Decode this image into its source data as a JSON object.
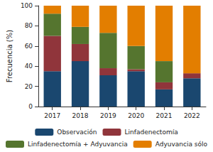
{
  "chart_data": {
    "type": "bar",
    "stacked": true,
    "legend": "bottom",
    "grid": false,
    "y_label": "Frecuencia (%)",
    "categories": [
      "2017",
      "2018",
      "2019",
      "2020",
      "2021",
      "2022"
    ],
    "ylim": [
      0,
      100
    ],
    "yticks": [
      0,
      20,
      40,
      60,
      80,
      100
    ],
    "series": [
      {
        "name": "Observación",
        "color": "#1a476f",
        "values": [
          35,
          45,
          31,
          35,
          17,
          28
        ]
      },
      {
        "name": "Linfadenectomía",
        "color": "#90353b",
        "values": [
          35,
          17,
          7,
          2,
          7,
          5
        ]
      },
      {
        "name": "Linfadenectomía + Adyuvancia",
        "color": "#55752f",
        "values": [
          22,
          17,
          35,
          23,
          21,
          0
        ]
      },
      {
        "name": "Adyuvancia sólo",
        "color": "#e37e00",
        "values": [
          8,
          21,
          27,
          40,
          55,
          67
        ]
      }
    ]
  }
}
